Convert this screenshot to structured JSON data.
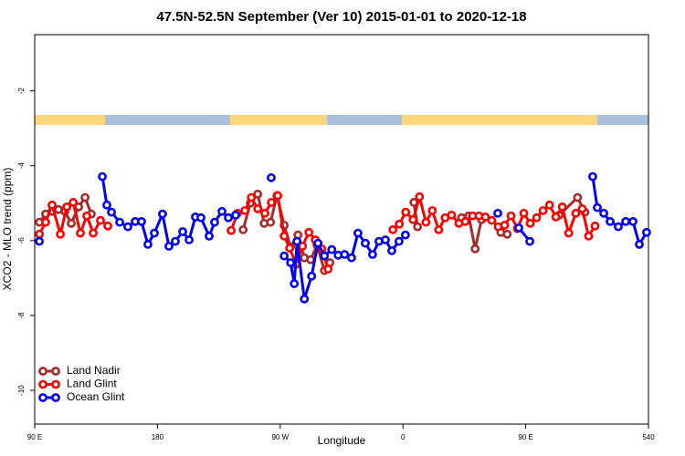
{
  "chart_data": {
    "type": "line",
    "title": "47.5N-52.5N September (Ver 10)   2015-01-01 to 2020-12-18",
    "xlabel": "Longitude",
    "ylabel": "XCO2 - MLO trend (ppm)",
    "xlim": [
      90,
      540
    ],
    "ylim": [
      -10.9,
      -0.5
    ],
    "xticks": [
      {
        "value": 90,
        "label": "90 E"
      },
      180,
      {
        "value": 270,
        "label": "90 W"
      },
      {
        "value": 360,
        "label": "0"
      },
      {
        "value": 450,
        "label": "90 E"
      },
      540
    ],
    "yticks": [
      -2,
      -4,
      -6,
      -8,
      -10
    ],
    "legend": "lower left",
    "series": [
      {
        "name": "Land Nadir",
        "color": "#a52a2a",
        "x": [
          93.4,
          98.0,
          102.7,
          107.4,
          112.1,
          116.8,
          122.2,
          126.9,
          131.5,
          null,
          242.8,
          248.1,
          253.5,
          258.2,
          262.9,
          267.6,
          272.9,
          277.6,
          283.0,
          287.7,
          292.3,
          297.0,
          302.4,
          306.4,
          null,
          368.0,
          370.7,
          null,
          403.0,
          408.2,
          412.9,
          417.6,
          null,
          431.7,
          436.4,
          null,
          474.6,
          488.0,
          493.4
        ],
        "values": [
          -5.51,
          -5.29,
          -5.22,
          -5.17,
          -5.22,
          -5.54,
          -5.1,
          -4.85,
          -5.29,
          null,
          -5.71,
          -5.0,
          -4.76,
          -5.54,
          -5.51,
          -4.8,
          -5.59,
          -6.17,
          -5.85,
          -6.46,
          -6.51,
          -6.12,
          -6.8,
          -6.59,
          null,
          -4.98,
          -5.63,
          null,
          -5.39,
          -5.34,
          -6.22,
          -5.44,
          null,
          -5.78,
          -5.83,
          null,
          -5.32,
          -4.85,
          -5.24
        ]
      },
      {
        "name": "Land Glint",
        "color": "#ff0000",
        "x": [
          93.4,
          98.0,
          102.7,
          108.8,
          113.5,
          118.2,
          123.5,
          128.2,
          132.9,
          138.2,
          143.6,
          null,
          234.0,
          238.7,
          244.1,
          248.8,
          253.5,
          258.8,
          263.5,
          268.2,
          272.9,
          276.9,
          281.6,
          286.3,
          291.0,
          295.7,
          300.4,
          305.1,
          null,
          352.6,
          357.3,
          362.0,
          367.4,
          372.1,
          376.8,
          381.5,
          386.2,
          390.9,
          395.6,
          401.0,
          405.7,
          411.0,
          415.7,
          420.4,
          425.1,
          429.8,
          434.5,
          439.2,
          443.9,
          448.6,
          453.3,
          458.0,
          462.7,
          467.4,
          472.1,
          476.8,
          481.5,
          486.7,
          491.4,
          496.1,
          500.8
        ],
        "values": [
          -5.83,
          -5.51,
          -5.05,
          -5.83,
          -5.1,
          -4.98,
          -5.8,
          -5.34,
          -5.8,
          -5.46,
          -5.61,
          null,
          -5.73,
          -5.27,
          -5.2,
          -4.85,
          -5.15,
          -5.27,
          -4.98,
          -4.8,
          -5.88,
          -6.2,
          -6.63,
          -6.15,
          -5.78,
          -5.98,
          -6.22,
          -6.76,
          null,
          -5.71,
          -5.56,
          -5.24,
          -5.44,
          -4.83,
          -5.51,
          -5.2,
          -5.71,
          -5.39,
          -5.32,
          -5.54,
          -5.49,
          -5.34,
          -5.34,
          -5.37,
          -5.46,
          -5.63,
          -5.59,
          -5.34,
          -5.68,
          -5.27,
          -5.54,
          -5.39,
          -5.2,
          -5.05,
          -5.37,
          -5.1,
          -5.8,
          -5.27,
          -5.15,
          -5.88,
          -5.61
        ]
      },
      {
        "name": "Ocean Glint",
        "color": "#0000ee",
        "x": [
          93.4,
          null,
          139.6,
          142.9,
          146.3,
          152.3,
          158.3,
          163.7,
          168.3,
          173.0,
          177.7,
          183.7,
          188.4,
          193.1,
          198.5,
          203.2,
          207.8,
          211.9,
          217.9,
          221.9,
          227.3,
          232.0,
          237.3,
          null,
          263.4,
          null,
          272.9,
          277.6,
          280.3,
          282.3,
          287.7,
          293.0,
          297.7,
          302.4,
          307.8,
          312.5,
          317.2,
          322.3,
          327.0,
          332.4,
          337.7,
          342.4,
          347.1,
          351.8,
          357.1,
          361.8,
          null,
          429.5,
          null,
          444.9,
          453.0,
          null,
          499.1,
          502.5,
          507.2,
          511.9,
          517.9,
          523.3,
          528.6,
          533.3,
          538.6
        ],
        "values": [
          -6.02,
          null,
          -4.29,
          -5.05,
          -5.24,
          -5.51,
          -5.63,
          -5.49,
          -5.49,
          -6.1,
          -5.8,
          -5.29,
          -6.15,
          -6.02,
          -5.76,
          -5.98,
          -5.37,
          -5.39,
          -5.88,
          -5.51,
          -5.22,
          -5.39,
          -5.32,
          null,
          -4.32,
          null,
          -6.41,
          -6.59,
          -7.15,
          -6.02,
          -7.56,
          -6.95,
          -6.07,
          -6.41,
          -6.24,
          -6.39,
          -6.37,
          -6.46,
          -5.8,
          -6.07,
          -6.37,
          -6.02,
          -5.98,
          -6.27,
          -6.02,
          -5.85,
          null,
          -5.27,
          null,
          -5.66,
          -6.02,
          null,
          -4.29,
          -5.12,
          -5.27,
          -5.49,
          -5.63,
          -5.49,
          -5.49,
          -6.1,
          -5.78
        ]
      }
    ]
  }
}
